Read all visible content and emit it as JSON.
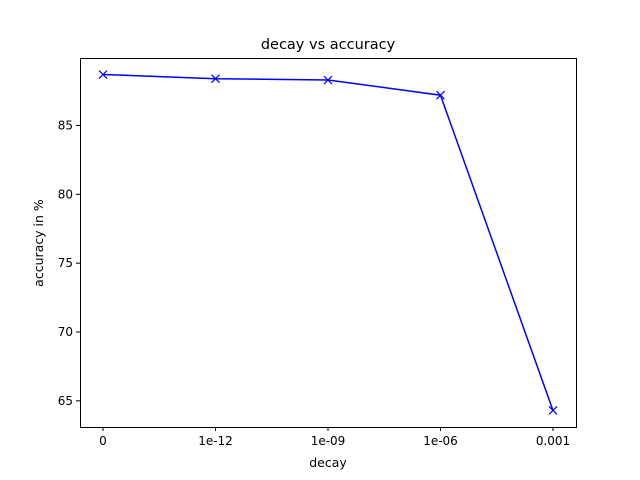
{
  "chart_data": {
    "type": "line",
    "title": "decay vs accuracy",
    "xlabel": "decay",
    "ylabel": "accuracy in %",
    "categories": [
      "0",
      "1e-12",
      "1e-09",
      "1e-06",
      "0.001"
    ],
    "series": [
      {
        "values": [
          88.7,
          88.4,
          88.3,
          87.2,
          64.3
        ],
        "color": "#0000ff",
        "marker": "x"
      }
    ],
    "yticks": [
      65,
      70,
      75,
      80,
      85
    ],
    "ylim": [
      63.1,
      89.9
    ],
    "grid": false,
    "legend": "none"
  }
}
